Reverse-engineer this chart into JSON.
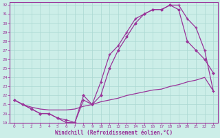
{
  "xlabel": "Windchill (Refroidissement éolien,°C)",
  "background_color": "#cceee8",
  "grid_color": "#aad8d2",
  "line_color": "#993399",
  "xlim": [
    -0.5,
    23.5
  ],
  "ylim": [
    19,
    32.3
  ],
  "xticks": [
    0,
    1,
    2,
    3,
    4,
    5,
    6,
    7,
    8,
    9,
    10,
    11,
    12,
    13,
    14,
    15,
    16,
    17,
    18,
    19,
    20,
    21,
    22,
    23
  ],
  "yticks": [
    19,
    20,
    21,
    22,
    23,
    24,
    25,
    26,
    27,
    28,
    29,
    30,
    31,
    32
  ],
  "line_plus_x": [
    0,
    1,
    2,
    3,
    4,
    5,
    6,
    7,
    8,
    9,
    10,
    11,
    12,
    13,
    14,
    15,
    16,
    17,
    18,
    19,
    20,
    21,
    22,
    23
  ],
  "line_plus_y": [
    21.5,
    21.0,
    20.5,
    20.0,
    20.0,
    19.5,
    19.0,
    19.0,
    21.5,
    21.0,
    23.5,
    26.5,
    27.5,
    29.0,
    30.5,
    31.0,
    31.5,
    31.5,
    32.0,
    32.0,
    30.5,
    29.5,
    27.0,
    22.5
  ],
  "line_diamond_x": [
    0,
    1,
    2,
    3,
    4,
    5,
    6,
    7,
    8,
    9,
    10,
    11,
    12,
    13,
    14,
    15,
    16,
    17,
    18,
    19,
    20,
    21,
    22,
    23
  ],
  "line_diamond_y": [
    21.5,
    21.0,
    20.5,
    20.0,
    20.0,
    19.5,
    19.3,
    19.0,
    22.0,
    21.0,
    22.0,
    25.0,
    27.0,
    28.5,
    30.0,
    31.0,
    31.5,
    31.5,
    32.0,
    31.5,
    28.0,
    27.0,
    26.0,
    24.5
  ],
  "line_plain_x": [
    0,
    1,
    2,
    3,
    4,
    5,
    6,
    7,
    8,
    9,
    10,
    11,
    12,
    13,
    14,
    15,
    16,
    17,
    18,
    19,
    20,
    21,
    22,
    23
  ],
  "line_plain_y": [
    21.5,
    21.0,
    20.7,
    20.5,
    20.4,
    20.4,
    20.4,
    20.5,
    20.8,
    21.0,
    21.3,
    21.5,
    21.7,
    22.0,
    22.2,
    22.4,
    22.6,
    22.7,
    23.0,
    23.2,
    23.5,
    23.7,
    24.0,
    22.5
  ]
}
